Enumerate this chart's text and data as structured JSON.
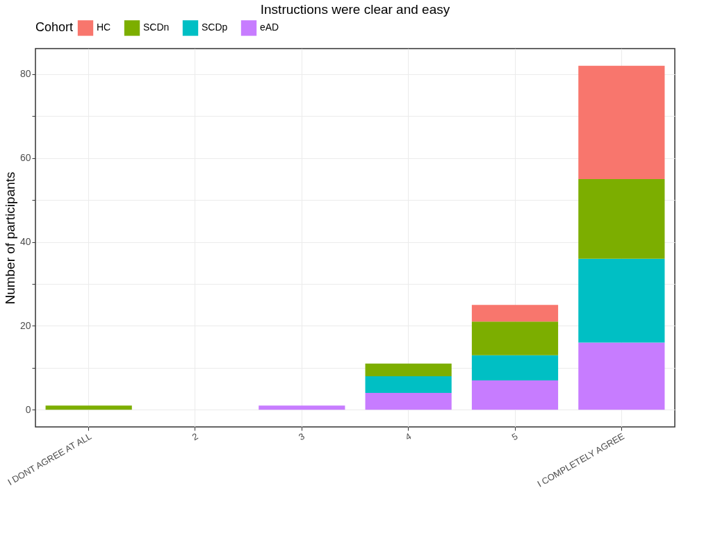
{
  "chart_data": {
    "type": "bar",
    "title": "Instructions were clear and easy",
    "ylabel": "Number of participants",
    "legend_title": "Cohort",
    "legend": "top",
    "categories": [
      "I DONT AGREE AT ALL",
      "2",
      "3",
      "4",
      "5",
      "I COMPLETELY AGREE"
    ],
    "stacked": true,
    "series": [
      {
        "name": "eAD",
        "color": "#c77cff",
        "values": [
          0,
          0,
          1,
          4,
          7,
          16
        ]
      },
      {
        "name": "SCDp",
        "color": "#00bfc4",
        "values": [
          0,
          0,
          0,
          4,
          6,
          20
        ]
      },
      {
        "name": "SCDn",
        "color": "#7cae00",
        "values": [
          1,
          0,
          0,
          3,
          8,
          19
        ]
      },
      {
        "name": "HC",
        "color": "#f8766d",
        "values": [
          0,
          0,
          0,
          0,
          4,
          27
        ]
      }
    ],
    "ylim": [
      -4.1,
      86.1
    ],
    "yticks": [
      0,
      {
        "value": 10,
        "label": null
      },
      20,
      {
        "value": 30,
        "label": null
      },
      40,
      {
        "value": 50,
        "label": null
      },
      60,
      {
        "value": 70,
        "label": null
      },
      80
    ],
    "grid": true
  }
}
